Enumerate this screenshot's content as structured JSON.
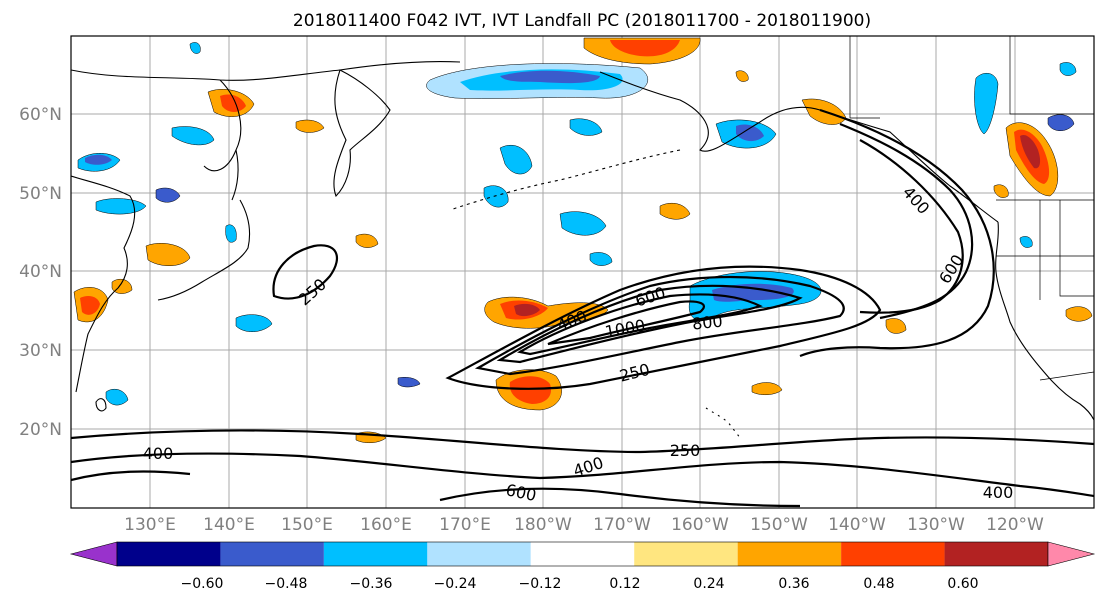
{
  "title": "2018011400 F042 IVT, IVT Landfall PC (2018011700 - 2018011900)",
  "map": {
    "lat_labels": [
      "60°N",
      "50°N",
      "40°N",
      "30°N",
      "20°N"
    ],
    "lon_labels": [
      "130°E",
      "140°E",
      "150°E",
      "160°E",
      "170°E",
      "180°W",
      "170°W",
      "160°W",
      "150°W",
      "140°W",
      "130°W",
      "120°W"
    ],
    "contour_labels": [
      "400",
      "600",
      "250",
      "600",
      "400",
      "1000",
      "800",
      "250",
      "250",
      "400",
      "400",
      "600",
      "400"
    ]
  },
  "colorbar": {
    "colors": [
      "#9932CC",
      "#00008B",
      "#3A5BCC",
      "#00BFFF",
      "#B0E2FF",
      "#FFFFFF",
      "#FFE680",
      "#FFA500",
      "#FF4000",
      "#B22222",
      "#FF88AA"
    ],
    "tick_labels": [
      "−0.60",
      "−0.48",
      "−0.36",
      "−0.24",
      "−0.12",
      "0.12",
      "0.24",
      "0.36",
      "0.48",
      "0.60"
    ]
  }
}
